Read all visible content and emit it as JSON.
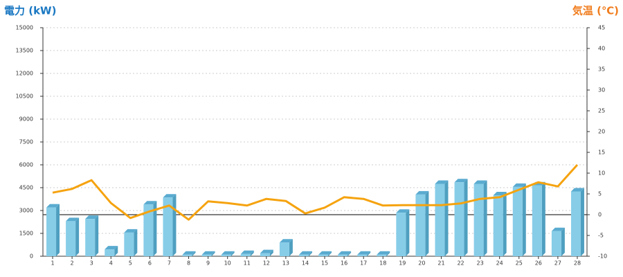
{
  "chart_data": {
    "type": "bar-line",
    "y_title": "電力 (kW)",
    "y2_title": "気温 (℃)",
    "categories": [
      "1",
      "2",
      "3",
      "4",
      "5",
      "6",
      "7",
      "8",
      "9",
      "10",
      "11",
      "12",
      "13",
      "14",
      "15",
      "16",
      "17",
      "18",
      "19",
      "20",
      "21",
      "22",
      "23",
      "24",
      "25",
      "26",
      "27",
      "28"
    ],
    "series": [
      {
        "name": "電力",
        "type": "bar",
        "color": "#87cde8",
        "values": [
          3200,
          2300,
          2450,
          450,
          1550,
          3400,
          3850,
          100,
          100,
          100,
          150,
          200,
          900,
          100,
          100,
          100,
          100,
          100,
          2850,
          4050,
          4750,
          4850,
          4750,
          4000,
          4550,
          4650,
          1650,
          4250
        ]
      },
      {
        "name": "気温",
        "type": "line",
        "axis": "y2",
        "color": "#f5a30f",
        "values": [
          5.3,
          6.2,
          8.3,
          2.8,
          -0.8,
          0.8,
          2.2,
          -1.2,
          3.2,
          2.8,
          2.2,
          3.8,
          3.3,
          0.3,
          1.7,
          4.2,
          3.8,
          2.2,
          2.3,
          2.3,
          2.3,
          2.7,
          3.8,
          4.2,
          6.0,
          7.8,
          6.8,
          12
        ]
      }
    ],
    "ylim": [
      0,
      15000
    ],
    "yticks": [
      0,
      1500,
      3000,
      4500,
      6000,
      7500,
      9000,
      10500,
      12000,
      13500,
      15000
    ],
    "y2lim": [
      -10,
      45
    ],
    "y2ticks": [
      -10,
      -5,
      0,
      5,
      10,
      15,
      20,
      25,
      30,
      35,
      40,
      45
    ],
    "grid": true
  }
}
